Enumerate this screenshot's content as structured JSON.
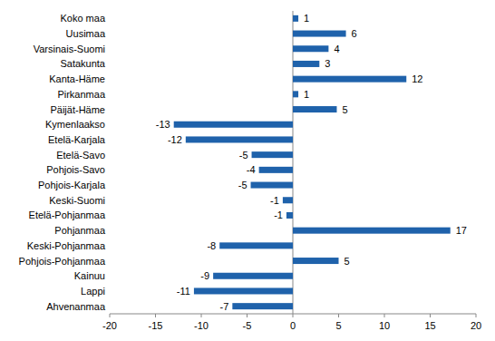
{
  "chart_data": {
    "type": "bar",
    "orientation": "horizontal",
    "data_labels": true,
    "grid": false,
    "color": "#1f62ab",
    "categories": [
      "Koko maa",
      "Uusimaa",
      "Varsinais-Suomi",
      "Satakunta",
      "Kanta-Häme",
      "Pirkanmaa",
      "Päijät-Häme",
      "Kymenlaakso",
      "Etelä-Karjala",
      "Etelä-Savo",
      "Pohjois-Savo",
      "Pohjois-Karjala",
      "Keski-Suomi",
      "Etelä-Pohjanmaa",
      "Pohjanmaa",
      "Keski-Pohjanmaa",
      "Pohjois-Pohjanmaa",
      "Kainuu",
      "Lappi",
      "Ahvenanmaa"
    ],
    "values": [
      0.6,
      5.8,
      3.9,
      2.9,
      12.4,
      0.6,
      4.8,
      -13.0,
      -11.7,
      -4.5,
      -3.7,
      -4.6,
      -1.1,
      -0.7,
      17.2,
      -8.0,
      5.0,
      -8.7,
      -10.8,
      -6.6
    ],
    "value_labels": [
      "1",
      "6",
      "4",
      "3",
      "12",
      "1",
      "5",
      "-13",
      "-12",
      "-5",
      "-4",
      "-5",
      "-1",
      "-1",
      "17",
      "-8",
      "5",
      "-9",
      "-11",
      "-7"
    ],
    "xlim": [
      -20,
      20
    ],
    "xticks": [
      -20,
      -15,
      -10,
      -5,
      0,
      5,
      10,
      15,
      20
    ]
  }
}
